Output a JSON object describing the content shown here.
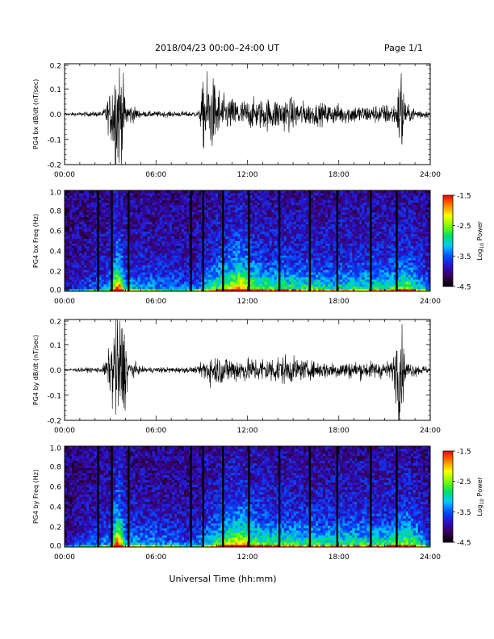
{
  "header": {
    "title": "2018/04/23  00:00–24:00 UT",
    "page": "Page 1/1"
  },
  "xlabel": "Universal Time (hh:mm)",
  "xticks": [
    "00:00",
    "06:00",
    "12:00",
    "18:00",
    "24:00"
  ],
  "colorbar": {
    "label_log": "Log",
    "label_sub": "10",
    "label_power": " Power",
    "ticks": [
      "-1.5",
      "-2.5",
      "-3.5",
      "-4.5"
    ],
    "range": [
      -4.5,
      -1.5
    ],
    "colormap": [
      "#000000",
      "#3a005a",
      "#2a10c8",
      "#0050ff",
      "#00c8ff",
      "#00e060",
      "#80ff00",
      "#ffff00",
      "#ff8000",
      "#ff0000"
    ]
  },
  "chart_data": [
    {
      "type": "line",
      "ylabel": "PG4 bx dB/dt (nT/sec)",
      "xlim": [
        0,
        24
      ],
      "ylim": [
        -0.2,
        0.2
      ],
      "yticks": [
        "0.2",
        "0.1",
        "0.0",
        "-0.1",
        "-0.2"
      ],
      "x_unit": "hours UT",
      "envelope": [
        {
          "x": 0.0,
          "amp": 0.005
        },
        {
          "x": 2.5,
          "amp": 0.01
        },
        {
          "x": 3.0,
          "amp": 0.08
        },
        {
          "x": 3.3,
          "amp": 0.2
        },
        {
          "x": 3.7,
          "amp": 0.2
        },
        {
          "x": 4.0,
          "amp": 0.05
        },
        {
          "x": 5.0,
          "amp": 0.01
        },
        {
          "x": 8.8,
          "amp": 0.01
        },
        {
          "x": 9.2,
          "amp": 0.15
        },
        {
          "x": 9.8,
          "amp": 0.12
        },
        {
          "x": 10.5,
          "amp": 0.06
        },
        {
          "x": 12.0,
          "amp": 0.05
        },
        {
          "x": 14.5,
          "amp": 0.06
        },
        {
          "x": 16.0,
          "amp": 0.04
        },
        {
          "x": 20.0,
          "amp": 0.03
        },
        {
          "x": 21.8,
          "amp": 0.04
        },
        {
          "x": 22.1,
          "amp": 0.2
        },
        {
          "x": 22.4,
          "amp": 0.03
        },
        {
          "x": 24.0,
          "amp": 0.01
        }
      ]
    },
    {
      "type": "heatmap",
      "ylabel": "PG4 bx Freq (Hz)",
      "xlim": [
        0,
        24
      ],
      "ylim": [
        0,
        1.0
      ],
      "yticks": [
        "1.0",
        "0.8",
        "0.6",
        "0.4",
        "0.2",
        "0.0"
      ],
      "z_unit": "Log10 Power",
      "zlim": [
        -4.5,
        -1.5
      ],
      "gap_times": [
        2.2,
        3.1,
        4.2,
        8.3,
        9.1,
        10.4,
        12.1,
        14.1,
        16.1,
        17.9,
        20.1,
        21.8
      ],
      "activity": [
        {
          "x": 0.0,
          "a": 0.05
        },
        {
          "x": 3.0,
          "a": 0.3
        },
        {
          "x": 3.5,
          "a": 1.0
        },
        {
          "x": 4.0,
          "a": 0.35
        },
        {
          "x": 8.5,
          "a": 0.2
        },
        {
          "x": 11.5,
          "a": 0.85
        },
        {
          "x": 12.5,
          "a": 0.55
        },
        {
          "x": 14.0,
          "a": 0.5
        },
        {
          "x": 16.0,
          "a": 0.45
        },
        {
          "x": 18.0,
          "a": 0.4
        },
        {
          "x": 21.0,
          "a": 0.45
        },
        {
          "x": 22.5,
          "a": 0.6
        },
        {
          "x": 24.0,
          "a": 0.2
        }
      ]
    },
    {
      "type": "line",
      "ylabel": "PG4 by dB/dt (nT/sec)",
      "xlim": [
        0,
        24
      ],
      "ylim": [
        -0.2,
        0.2
      ],
      "yticks": [
        "0.2",
        "0.1",
        "0.0",
        "-0.1",
        "-0.2"
      ],
      "x_unit": "hours UT",
      "envelope": [
        {
          "x": 0.0,
          "amp": 0.005
        },
        {
          "x": 2.5,
          "amp": 0.01
        },
        {
          "x": 3.0,
          "amp": 0.08
        },
        {
          "x": 3.3,
          "amp": 0.2
        },
        {
          "x": 3.8,
          "amp": 0.2
        },
        {
          "x": 4.2,
          "amp": 0.04
        },
        {
          "x": 5.0,
          "amp": 0.01
        },
        {
          "x": 8.8,
          "amp": 0.01
        },
        {
          "x": 9.2,
          "amp": 0.05
        },
        {
          "x": 10.5,
          "amp": 0.05
        },
        {
          "x": 12.0,
          "amp": 0.04
        },
        {
          "x": 14.5,
          "amp": 0.05
        },
        {
          "x": 16.0,
          "amp": 0.03
        },
        {
          "x": 21.5,
          "amp": 0.03
        },
        {
          "x": 22.0,
          "amp": 0.2
        },
        {
          "x": 22.4,
          "amp": 0.03
        },
        {
          "x": 24.0,
          "amp": 0.01
        }
      ]
    },
    {
      "type": "heatmap",
      "ylabel": "PG4 by Freq (Hz)",
      "xlim": [
        0,
        24
      ],
      "ylim": [
        0,
        1.0
      ],
      "yticks": [
        "1.0",
        "0.8",
        "0.6",
        "0.4",
        "0.2",
        "0.0"
      ],
      "z_unit": "Log10 Power",
      "zlim": [
        -4.5,
        -1.5
      ],
      "gap_times": [
        2.2,
        3.1,
        4.2,
        8.3,
        9.1,
        10.4,
        12.1,
        14.1,
        16.1,
        17.9,
        20.1,
        21.8
      ],
      "activity": [
        {
          "x": 0.0,
          "a": 0.05
        },
        {
          "x": 3.0,
          "a": 0.3
        },
        {
          "x": 3.5,
          "a": 1.0
        },
        {
          "x": 4.0,
          "a": 0.35
        },
        {
          "x": 8.5,
          "a": 0.2
        },
        {
          "x": 11.5,
          "a": 0.8
        },
        {
          "x": 12.5,
          "a": 0.55
        },
        {
          "x": 14.0,
          "a": 0.5
        },
        {
          "x": 16.0,
          "a": 0.45
        },
        {
          "x": 18.0,
          "a": 0.45
        },
        {
          "x": 21.0,
          "a": 0.45
        },
        {
          "x": 22.5,
          "a": 0.6
        },
        {
          "x": 24.0,
          "a": 0.2
        }
      ]
    }
  ]
}
